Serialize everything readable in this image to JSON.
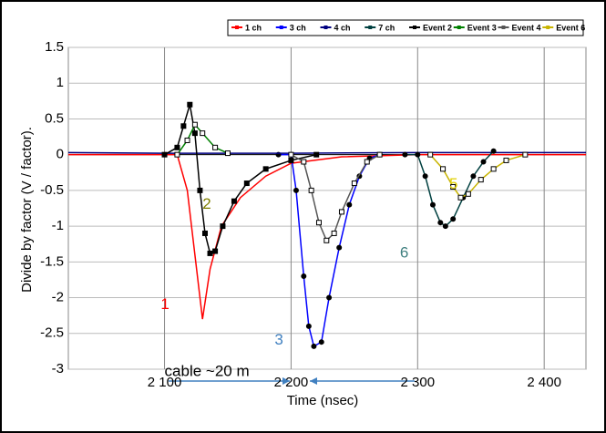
{
  "chart_data": {
    "type": "line",
    "y_label": "Divide by factor (V / factor).",
    "x_label": "Time (nsec)",
    "xlim": [
      2024,
      2433
    ],
    "ylim": [
      -3,
      1.5
    ],
    "xticks": [
      {
        "value": 2100,
        "label": "2 100"
      },
      {
        "value": 2200,
        "label": "2 200"
      },
      {
        "value": 2300,
        "label": "2 300"
      },
      {
        "value": 2400,
        "label": "2 400"
      }
    ],
    "yticks": [
      1.5,
      1,
      0.5,
      0,
      -0.5,
      -1,
      -1.5,
      -2,
      -2.5,
      -3
    ],
    "grid": true,
    "legend": "top-right",
    "series": [
      {
        "name": "1 ch",
        "color": "#ff0000",
        "marker": "none",
        "x": [
          2024,
          2100,
          2110,
          2118,
          2124,
          2130,
          2136,
          2145,
          2160,
          2180,
          2200,
          2240,
          2300,
          2433
        ],
        "values": [
          0,
          0,
          0,
          -0.5,
          -1.4,
          -2.3,
          -1.6,
          -1,
          -0.6,
          -0.3,
          -0.12,
          -0.03,
          0,
          0
        ]
      },
      {
        "name": "3 ch",
        "color": "#0000ff",
        "marker": "circle",
        "x": [
          2190,
          2200,
          2204,
          2210,
          2214,
          2218,
          2224,
          2230,
          2238,
          2246,
          2254,
          2262,
          2270
        ],
        "values": [
          0,
          0,
          -0.5,
          -1.7,
          -2.4,
          -2.68,
          -2.62,
          -2,
          -1.3,
          -0.7,
          -0.3,
          -0.05,
          0
        ]
      },
      {
        "name": "4 ch",
        "color": "#000080",
        "marker": "none",
        "x": [
          2024,
          2100,
          2200,
          2300,
          2433
        ],
        "values": [
          0.03,
          0.02,
          0.02,
          0.03,
          0.03
        ]
      },
      {
        "name": "7 ch",
        "color": "#004040",
        "marker": "circle",
        "x": [
          2290,
          2300,
          2306,
          2312,
          2318,
          2322,
          2328,
          2336,
          2344,
          2352,
          2360
        ],
        "values": [
          0,
          0,
          -0.3,
          -0.7,
          -0.95,
          -1,
          -0.9,
          -0.6,
          -0.3,
          -0.1,
          0.05
        ]
      },
      {
        "name": "Event 2",
        "color": "#000000",
        "marker": "square",
        "x": [
          2100,
          2110,
          2115,
          2120,
          2124,
          2128,
          2132,
          2136,
          2140,
          2146,
          2155,
          2165,
          2180,
          2200,
          2220
        ],
        "values": [
          0,
          0.1,
          0.4,
          0.7,
          0.3,
          -0.5,
          -1.1,
          -1.38,
          -1.35,
          -1,
          -0.65,
          -0.4,
          -0.2,
          -0.08,
          0
        ]
      },
      {
        "name": "Event 3",
        "color": "#008000",
        "marker": "square",
        "x": [
          2110,
          2118,
          2124,
          2130,
          2140,
          2150
        ],
        "values": [
          0,
          0.2,
          0.42,
          0.3,
          0.1,
          0.02
        ]
      },
      {
        "name": "Event 4",
        "color": "#555555",
        "marker": "square",
        "x": [
          2200,
          2210,
          2216,
          2222,
          2228,
          2234,
          2240,
          2250,
          2260,
          2270
        ],
        "values": [
          0,
          -0.1,
          -0.5,
          -0.95,
          -1.2,
          -1.1,
          -0.8,
          -0.4,
          -0.1,
          0
        ]
      },
      {
        "name": "Event 6",
        "color": "#c8b400",
        "marker": "square",
        "x": [
          2310,
          2320,
          2328,
          2334,
          2340,
          2350,
          2360,
          2370,
          2385
        ],
        "values": [
          0,
          -0.2,
          -0.45,
          -0.6,
          -0.55,
          -0.35,
          -0.2,
          -0.08,
          0
        ]
      }
    ],
    "annotations": [
      {
        "text": "1",
        "color": "#ff0000",
        "x": 2097,
        "y": -2.1
      },
      {
        "text": "2",
        "color": "#808000",
        "x": 2130,
        "y": -0.7
      },
      {
        "text": "3",
        "color": "#4080c0",
        "x": 2187,
        "y": -2.6
      },
      {
        "text": "6",
        "color": "#408080",
        "x": 2286,
        "y": -1.38
      },
      {
        "text": "5",
        "color": "#e0d000",
        "x": 2325,
        "y": -0.42
      },
      {
        "text": "cable ~20 m",
        "color": "#000000",
        "x": 2100,
        "y": -3.04
      }
    ]
  }
}
